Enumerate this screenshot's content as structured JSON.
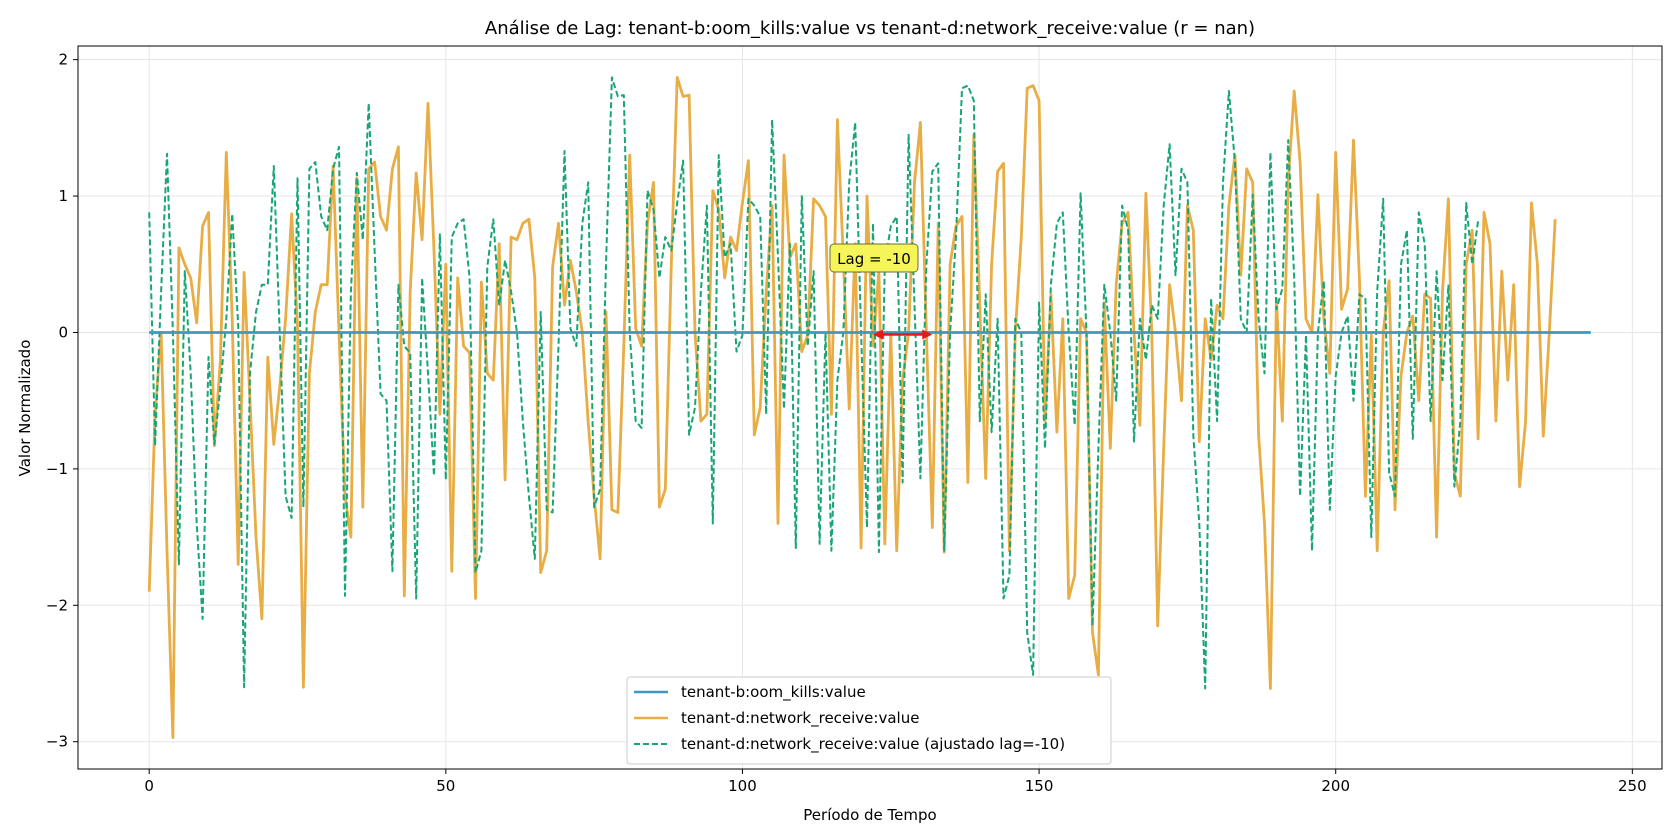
{
  "chart_data": {
    "type": "line",
    "title": "Análise de Lag: tenant-b:oom_kills:value vs tenant-d:network_receive:value (r = nan)",
    "xlabel": "Período de Tempo",
    "ylabel": "Valor Normalizado",
    "xlim": [
      -12,
      255
    ],
    "ylim": [
      -3.2,
      2.1
    ],
    "xticks": [
      0,
      50,
      100,
      150,
      200,
      250
    ],
    "yticks": [
      2,
      1,
      0,
      -1,
      -2,
      -3
    ],
    "ytick_labels": [
      "2",
      "1",
      "0",
      "−1",
      "−2",
      "−3"
    ],
    "grid": true,
    "legend_position": "lower-center",
    "annotation": {
      "text": "Lag = -10",
      "arrow_from_x": 122,
      "arrow_to_x": 132,
      "arrow_y": 0
    },
    "series": [
      {
        "name": "tenant-b:oom_kills:value",
        "color": "#3f97c2",
        "style": "solid",
        "x_start": 0,
        "values": [
          0,
          0
        ],
        "x": [
          0,
          243
        ]
      },
      {
        "name": "tenant-d:network_receive:value",
        "color": "#e8ad45",
        "style": "solid",
        "x_start": 0,
        "values": [
          -1.9,
          -0.6,
          0.0,
          -1.6,
          -2.97,
          0.62,
          0.5,
          0.4,
          0.07,
          0.78,
          0.88,
          -0.83,
          -0.2,
          1.32,
          0.1,
          -1.7,
          0.44,
          -0.5,
          -1.5,
          -2.1,
          -0.18,
          -0.82,
          -0.4,
          0.1,
          0.87,
          0.05,
          -2.6,
          -0.3,
          0.15,
          0.35,
          0.35,
          1.22,
          0.0,
          -1.2,
          -1.5,
          1.13,
          -1.28,
          1.2,
          1.25,
          0.85,
          0.75,
          1.2,
          1.36,
          -1.93,
          0.3,
          1.17,
          0.68,
          1.68,
          0.6,
          -0.6,
          0.5,
          -1.75,
          0.4,
          -0.1,
          -0.15,
          -1.95,
          0.37,
          -0.3,
          -0.35,
          0.65,
          -1.08,
          0.7,
          0.68,
          0.8,
          0.83,
          0.4,
          -1.76,
          -1.6,
          0.48,
          0.8,
          0.2,
          0.53,
          0.3,
          0.0,
          -0.66,
          -1.2,
          -1.66,
          0.15,
          -1.3,
          -1.32,
          -0.1,
          1.3,
          0.03,
          -0.1,
          0.8,
          1.1,
          -1.28,
          -1.15,
          0.5,
          1.87,
          1.73,
          1.74,
          0.0,
          -0.65,
          -0.6,
          1.04,
          0.9,
          0.4,
          0.7,
          0.6,
          0.95,
          1.26,
          -0.75,
          -0.55,
          0.3,
          0.93,
          -1.4,
          1.3,
          0.55,
          0.65,
          -0.14,
          -0.02,
          0.98,
          0.93,
          0.85,
          -0.6,
          1.56,
          0.55,
          -0.56,
          0.65,
          -1.58,
          1.0,
          -0.1,
          0.45,
          -1.55,
          0.0,
          -1.6,
          -0.35,
          0.0,
          1.1,
          1.54,
          0.0,
          -1.43,
          0.8,
          -1.61,
          0.5,
          0.78,
          0.85,
          -1.1,
          1.45,
          0.2,
          -1.07,
          0.5,
          1.18,
          1.24,
          -1.6,
          0.0,
          0.7,
          1.79,
          1.81,
          1.7,
          -0.65,
          0.28,
          -0.73,
          0.1,
          -1.95,
          -1.78,
          0.1,
          0.0,
          -2.2,
          -2.51,
          0.22,
          -0.85,
          0.35,
          0.8,
          0.88,
          0.0,
          -0.68,
          1.02,
          0.0,
          -2.15,
          -0.85,
          0.35,
          0.0,
          -0.5,
          0.93,
          0.75,
          -0.8,
          0.1,
          -0.2,
          0.2,
          0.1,
          0.93,
          1.3,
          0.42,
          1.2,
          1.1,
          -0.75,
          -1.4,
          -2.61,
          0.25,
          -0.65,
          1.1,
          1.77,
          1.25,
          0.1,
          0.0,
          1.01,
          0.1,
          -0.3,
          1.32,
          0.17,
          0.32,
          1.41,
          0.4,
          -1.2,
          -0.02,
          -1.6,
          0.0,
          0.38,
          -1.3,
          -0.32,
          0.0,
          0.12,
          -0.5,
          0.28,
          0.25,
          -1.5,
          0.3,
          0.98,
          -1.03,
          -1.2,
          0.5,
          0.75,
          -0.78,
          0.88,
          0.65,
          -0.65,
          0.45,
          -0.35,
          0.35,
          -1.13,
          -0.65,
          0.95,
          0.5,
          -0.76,
          0.0,
          0.83
        ]
      },
      {
        "name": "tenant-d:network_receive:value (ajustado lag=-10)",
        "color": "#17a673",
        "style": "dashed",
        "x_start": 0,
        "values": [
          0.88,
          -0.83,
          0.3,
          1.31,
          0.0,
          -1.7,
          0.45,
          -0.3,
          -1.4,
          -2.1,
          -0.18,
          -0.82,
          -0.4,
          0.1,
          0.87,
          0.05,
          -2.6,
          -0.3,
          0.15,
          0.35,
          0.35,
          1.22,
          0.0,
          -1.2,
          -1.36,
          1.13,
          -1.28,
          1.2,
          1.25,
          0.85,
          0.75,
          1.2,
          1.36,
          -1.93,
          0.3,
          1.17,
          0.68,
          1.68,
          0.6,
          -0.45,
          -0.5,
          -1.75,
          0.35,
          -0.1,
          -0.15,
          -1.95,
          0.4,
          -0.3,
          -1.05,
          0.72,
          -1.08,
          0.7,
          0.8,
          0.83,
          0.4,
          -1.76,
          -1.6,
          0.48,
          0.83,
          0.2,
          0.53,
          0.3,
          0.0,
          -0.66,
          -1.2,
          -1.66,
          0.15,
          -1.3,
          -1.32,
          -0.1,
          1.33,
          0.03,
          -0.1,
          0.8,
          1.1,
          -1.28,
          -1.15,
          0.5,
          1.87,
          1.73,
          1.74,
          0.0,
          -0.65,
          -0.7,
          1.04,
          0.9,
          0.4,
          0.7,
          0.6,
          0.95,
          1.26,
          -0.75,
          -0.55,
          0.3,
          0.93,
          -1.4,
          1.3,
          0.55,
          0.65,
          -0.14,
          -0.02,
          0.98,
          0.93,
          0.85,
          -0.6,
          1.56,
          0.55,
          -0.56,
          0.65,
          -1.58,
          1.0,
          -0.1,
          0.45,
          -1.55,
          0.0,
          -1.6,
          -0.35,
          0.0,
          1.1,
          1.54,
          0.0,
          -1.43,
          0.8,
          -1.61,
          0.5,
          0.78,
          0.85,
          -1.1,
          1.45,
          0.2,
          -1.07,
          0.5,
          1.18,
          1.24,
          -1.6,
          0.0,
          0.7,
          1.79,
          1.81,
          1.7,
          -0.65,
          0.28,
          -0.73,
          0.1,
          -1.95,
          -1.78,
          0.1,
          0.0,
          -2.2,
          -2.51,
          0.22,
          -0.85,
          0.35,
          0.8,
          0.88,
          0.0,
          -0.68,
          1.02,
          0.0,
          -2.15,
          -0.85,
          0.35,
          0.0,
          -0.5,
          0.93,
          0.75,
          -0.8,
          0.1,
          -0.2,
          0.2,
          0.1,
          0.93,
          1.38,
          0.42,
          1.2,
          1.1,
          -0.75,
          -1.4,
          -2.61,
          0.25,
          -0.65,
          1.1,
          1.77,
          1.25,
          0.1,
          0.0,
          1.01,
          0.1,
          -0.3,
          1.32,
          0.17,
          0.32,
          1.41,
          0.4,
          -1.2,
          -0.02,
          -1.6,
          0.0,
          0.38,
          -1.3,
          -0.32,
          0.0,
          0.12,
          -0.5,
          0.28,
          0.25,
          -1.5,
          0.3,
          0.98,
          -1.03,
          -1.2,
          0.5,
          0.75,
          -0.78,
          0.88,
          0.65,
          -0.65,
          0.45,
          -0.35,
          0.35,
          -1.13,
          -0.65,
          0.95,
          0.5,
          0.82
        ]
      }
    ]
  }
}
